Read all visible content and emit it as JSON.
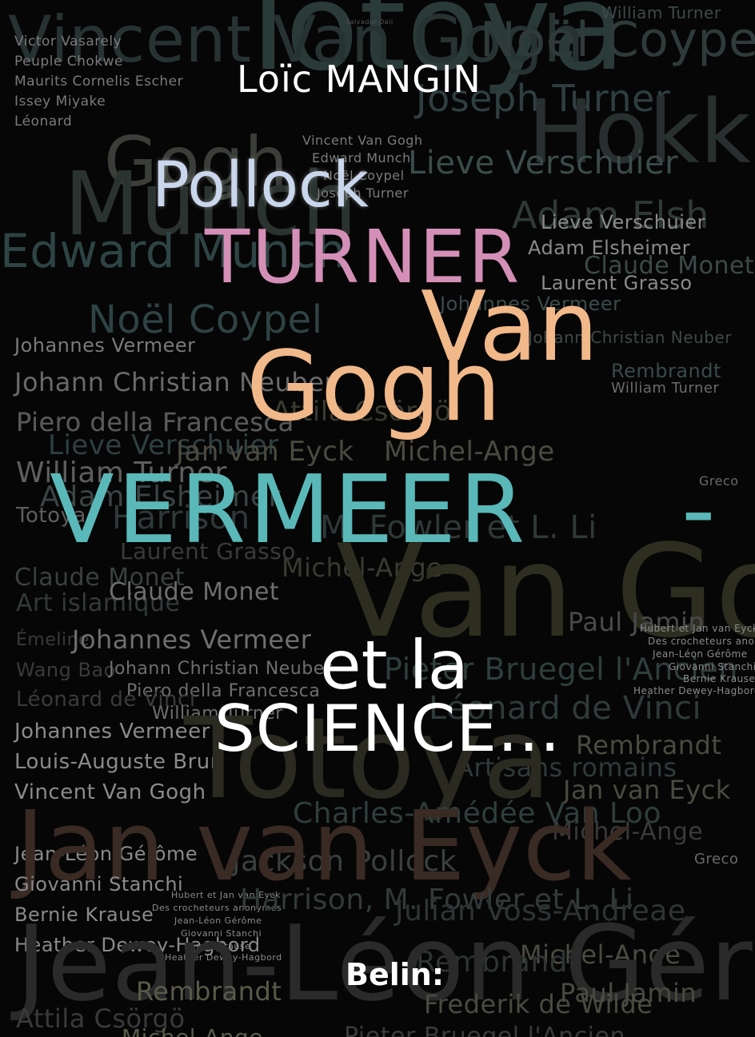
{
  "author": "Loïc MANGIN",
  "title": {
    "names": [
      "Pollock",
      "TURNER",
      "Van",
      "Gogh",
      "VERMEER"
    ],
    "dash": "-",
    "and_the": "et la",
    "science": "SCIENCE..."
  },
  "publisher": "Belin:",
  "colors": {
    "pollock": "#c9d6ec",
    "turner": "#d48fb7",
    "vangogh": "#f1b88a",
    "vermeer": "#5ab8b8",
    "science": "#ffffff",
    "background": "#060606"
  },
  "background_names": [
    "Totoya",
    "Vincent Van Gogh",
    "Noël Coypel",
    "William Turner",
    "Salvador Dalí",
    "Victor Vasarely",
    "Peuple Chokwe",
    "Maurits Cornelis Escher",
    "Issey Miyake",
    "Léonard",
    "Joseph Turner",
    "Hokkr",
    "Gogh",
    "Munch",
    "Vincent Van Gogh",
    "Edward Munch",
    "Noël Coypel",
    "Joseph Turner",
    "Lieve Verschuier",
    "Adam Elsh",
    "Edward Munch",
    "Lieve Verschuier",
    "Adam Elsheimer",
    "Claude Monet",
    "Laurent Grasso",
    "Noël Coypel",
    "Johannes Vermeer",
    "Johann Christian Neuber",
    "Piero della Francesca",
    "Rembrandt",
    "William Turner",
    "Johannes Vermeer",
    "Johann Christian Neuber",
    "Attila Csörgö",
    "Piero della Francesca",
    "Lieve Verschuier",
    "Jan van Eyck",
    "Michel-Ange",
    "William Turner",
    "Greco",
    "Adam Elsheimer",
    "Totoya",
    "Harrison",
    "M. Fowler et L. Li",
    "Laurent Grasso",
    "Claude Monet",
    "Michel-Ange",
    "Art islamique",
    "Claude Monet",
    "Van Gogh",
    "Paul Jamin",
    "Émeline",
    "Johannes Vermeer",
    "Hubert et Jan van Eyck",
    "Des crocheteurs anonymes",
    "Wang Bao",
    "Johann Christian Neuber",
    "Pieter Bruegel l'Ancien",
    "Jean-Léon Gérôme",
    "Giovanni Stanchi",
    "Piero della Francesca",
    "Bernie Krause",
    "Heather Dewey-Hagbord",
    "Léonard de Vinci",
    "William Turner",
    "Léonard de Vinci",
    "Johannes Vermeer",
    "Rembrandt",
    "Louis-Auguste Brun",
    "Artisans romains",
    "Totoya",
    "Vincent Van Gogh",
    "Jan van Eyck",
    "Charles-Amédée Van Loo",
    "Michel-Ange",
    "Jean-Léon Gérôme",
    "Jackson Pollock",
    "Greco",
    "Jan van Eyck",
    "Giovanni Stanchi",
    "Hubert et Jan van Eyck",
    "Des crocheteurs anonymes",
    "Harrison, M. Fowler et L. Li",
    "Bernie Krause",
    "Jean-Léon Gérôme",
    "Julian Voss-Andreae",
    "Giovanni Stanchi",
    "Heather Dewey-Hagbord",
    "Bernie Krause",
    "Heather Dewey-Hagbord",
    "Michel-Ange",
    "Rembrandt",
    "Jean-Léon Gérôme",
    "Rembrandt",
    "Paul Jamin",
    "Attila Csörgö",
    "Frederik de Wilde",
    "Michel-Ange",
    "Pieter Bruegel l'Ancien"
  ]
}
